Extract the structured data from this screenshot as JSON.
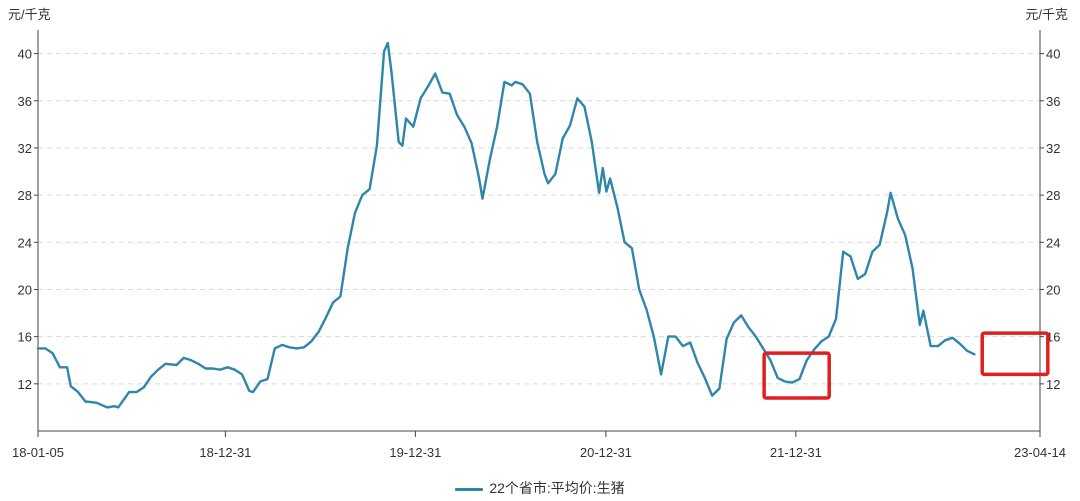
{
  "chart_data": {
    "type": "line",
    "title": "",
    "y_unit_left": "元/千克",
    "y_unit_right": "元/千克",
    "ylim": [
      8,
      42
    ],
    "yticks": [
      12,
      16,
      20,
      24,
      28,
      32,
      36,
      40
    ],
    "grid": true,
    "legend_position": "bottom",
    "x_tick_labels": [
      "18-01-05",
      "18-12-31",
      "19-12-31",
      "20-12-31",
      "21-12-31",
      "23-04-14"
    ],
    "x_range": [
      "2018-01-05",
      "2023-04-14"
    ],
    "series": [
      {
        "name": "22个省市:平均价:生猪",
        "color": "#2E86AB",
        "points": [
          [
            "2018-01-05",
            15.0
          ],
          [
            "2018-01-19",
            15.0
          ],
          [
            "2018-02-02",
            14.6
          ],
          [
            "2018-02-16",
            13.4
          ],
          [
            "2018-03-02",
            13.4
          ],
          [
            "2018-03-09",
            11.8
          ],
          [
            "2018-03-23",
            11.3
          ],
          [
            "2018-04-06",
            10.5
          ],
          [
            "2018-04-27",
            10.4
          ],
          [
            "2018-05-18",
            10.0
          ],
          [
            "2018-06-01",
            10.1
          ],
          [
            "2018-06-08",
            10.0
          ],
          [
            "2018-06-29",
            11.3
          ],
          [
            "2018-07-13",
            11.3
          ],
          [
            "2018-07-27",
            11.7
          ],
          [
            "2018-08-10",
            12.6
          ],
          [
            "2018-08-24",
            13.2
          ],
          [
            "2018-09-07",
            13.7
          ],
          [
            "2018-09-28",
            13.6
          ],
          [
            "2018-10-12",
            14.2
          ],
          [
            "2018-10-26",
            14.0
          ],
          [
            "2018-11-09",
            13.7
          ],
          [
            "2018-11-23",
            13.3
          ],
          [
            "2018-12-07",
            13.3
          ],
          [
            "2018-12-21",
            13.2
          ],
          [
            "2019-01-04",
            13.4
          ],
          [
            "2019-01-18",
            13.2
          ],
          [
            "2019-02-01",
            12.8
          ],
          [
            "2019-02-15",
            11.4
          ],
          [
            "2019-02-22",
            11.3
          ],
          [
            "2019-03-08",
            12.2
          ],
          [
            "2019-03-22",
            12.4
          ],
          [
            "2019-04-05",
            15.0
          ],
          [
            "2019-04-19",
            15.3
          ],
          [
            "2019-05-03",
            15.1
          ],
          [
            "2019-05-17",
            15.0
          ],
          [
            "2019-05-31",
            15.1
          ],
          [
            "2019-06-14",
            15.6
          ],
          [
            "2019-06-28",
            16.4
          ],
          [
            "2019-07-12",
            17.6
          ],
          [
            "2019-07-26",
            18.9
          ],
          [
            "2019-08-09",
            19.4
          ],
          [
            "2019-08-23",
            23.5
          ],
          [
            "2019-09-06",
            26.5
          ],
          [
            "2019-09-20",
            28.0
          ],
          [
            "2019-10-04",
            28.5
          ],
          [
            "2019-10-18",
            32.2
          ],
          [
            "2019-11-01",
            40.2
          ],
          [
            "2019-11-08",
            40.9
          ],
          [
            "2019-11-15",
            38.5
          ],
          [
            "2019-11-29",
            32.5
          ],
          [
            "2019-12-06",
            32.2
          ],
          [
            "2019-12-13",
            34.5
          ],
          [
            "2019-12-27",
            33.8
          ],
          [
            "2020-01-10",
            36.2
          ],
          [
            "2020-01-24",
            37.2
          ],
          [
            "2020-02-07",
            38.3
          ],
          [
            "2020-02-21",
            36.7
          ],
          [
            "2020-03-06",
            36.6
          ],
          [
            "2020-03-20",
            34.8
          ],
          [
            "2020-04-03",
            33.8
          ],
          [
            "2020-04-17",
            32.4
          ],
          [
            "2020-05-01",
            29.5
          ],
          [
            "2020-05-08",
            27.7
          ],
          [
            "2020-05-22",
            31.0
          ],
          [
            "2020-06-05",
            33.8
          ],
          [
            "2020-06-19",
            37.6
          ],
          [
            "2020-07-03",
            37.3
          ],
          [
            "2020-07-10",
            37.6
          ],
          [
            "2020-07-24",
            37.4
          ],
          [
            "2020-08-07",
            36.6
          ],
          [
            "2020-08-21",
            32.5
          ],
          [
            "2020-09-04",
            29.8
          ],
          [
            "2020-09-11",
            29.0
          ],
          [
            "2020-09-25",
            29.8
          ],
          [
            "2020-10-09",
            32.8
          ],
          [
            "2020-10-23",
            33.9
          ],
          [
            "2020-11-06",
            36.2
          ],
          [
            "2020-11-20",
            35.5
          ],
          [
            "2020-12-04",
            32.5
          ],
          [
            "2020-12-18",
            28.2
          ],
          [
            "2020-12-25",
            30.3
          ],
          [
            "2021-01-01",
            28.3
          ],
          [
            "2021-01-08",
            29.4
          ],
          [
            "2021-01-22",
            27.0
          ],
          [
            "2021-02-05",
            24.0
          ],
          [
            "2021-02-19",
            23.5
          ],
          [
            "2021-03-05",
            20.0
          ],
          [
            "2021-03-19",
            18.3
          ],
          [
            "2021-04-02",
            16.0
          ],
          [
            "2021-04-16",
            12.8
          ],
          [
            "2021-04-30",
            16.0
          ],
          [
            "2021-05-14",
            16.0
          ],
          [
            "2021-05-28",
            15.2
          ],
          [
            "2021-06-11",
            15.5
          ],
          [
            "2021-06-25",
            13.8
          ],
          [
            "2021-07-09",
            12.5
          ],
          [
            "2021-07-23",
            11.0
          ],
          [
            "2021-08-06",
            11.6
          ],
          [
            "2021-08-20",
            15.8
          ],
          [
            "2021-09-03",
            17.2
          ],
          [
            "2021-09-17",
            17.8
          ],
          [
            "2021-10-01",
            16.8
          ],
          [
            "2021-10-15",
            16.0
          ],
          [
            "2021-10-29",
            15.0
          ],
          [
            "2021-11-12",
            14.0
          ],
          [
            "2021-11-26",
            12.5
          ],
          [
            "2021-12-10",
            12.2
          ],
          [
            "2021-12-24",
            12.1
          ],
          [
            "2022-01-07",
            12.4
          ],
          [
            "2022-01-21",
            14.0
          ],
          [
            "2022-02-04",
            14.9
          ],
          [
            "2022-02-18",
            15.6
          ],
          [
            "2022-03-04",
            16.0
          ],
          [
            "2022-03-18",
            17.5
          ],
          [
            "2022-04-01",
            23.2
          ],
          [
            "2022-04-15",
            22.8
          ],
          [
            "2022-04-29",
            20.9
          ],
          [
            "2022-05-13",
            21.3
          ],
          [
            "2022-05-27",
            23.2
          ],
          [
            "2022-06-10",
            23.8
          ],
          [
            "2022-06-24",
            26.5
          ],
          [
            "2022-07-01",
            28.2
          ],
          [
            "2022-07-15",
            26.0
          ],
          [
            "2022-07-29",
            24.6
          ],
          [
            "2022-08-12",
            21.8
          ],
          [
            "2022-08-26",
            17.0
          ],
          [
            "2022-09-02",
            18.2
          ],
          [
            "2022-09-16",
            15.2
          ],
          [
            "2022-09-30",
            15.2
          ],
          [
            "2022-10-14",
            15.7
          ],
          [
            "2022-10-28",
            15.9
          ],
          [
            "2022-11-11",
            15.4
          ],
          [
            "2022-11-25",
            14.8
          ],
          [
            "2022-12-09",
            14.5
          ]
        ]
      }
    ],
    "annotations": [
      {
        "type": "highlight-box",
        "x_range": [
          "2021-10-31",
          "2022-03-05"
        ],
        "y_range": [
          10.8,
          14.6
        ],
        "color": "#E02020"
      },
      {
        "type": "highlight-box",
        "x_range": [
          "2022-12-24",
          "2023-04-29"
        ],
        "y_range": [
          12.8,
          16.3
        ],
        "color": "#E02020"
      }
    ]
  }
}
